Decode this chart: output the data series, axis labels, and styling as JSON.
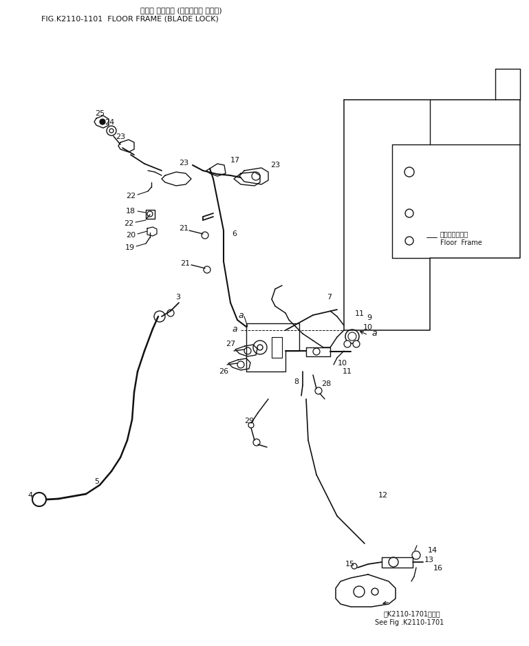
{
  "title_jp": "フロア フレーム (ブレード・ ロック)",
  "title_en": "FIG.K2110-1101  FLOOR FRAME (BLADE LOCK)",
  "bg_color": "#ffffff",
  "line_color": "#111111",
  "text_color": "#111111",
  "fig_width": 7.69,
  "fig_height": 9.39,
  "floor_frame_label_jp": "フロアフレーム",
  "floor_frame_label_en": "Floor  Frame",
  "see_fig_jp": "第K2110-1701図参照",
  "see_fig_en": "See Fig .K2110-1701"
}
